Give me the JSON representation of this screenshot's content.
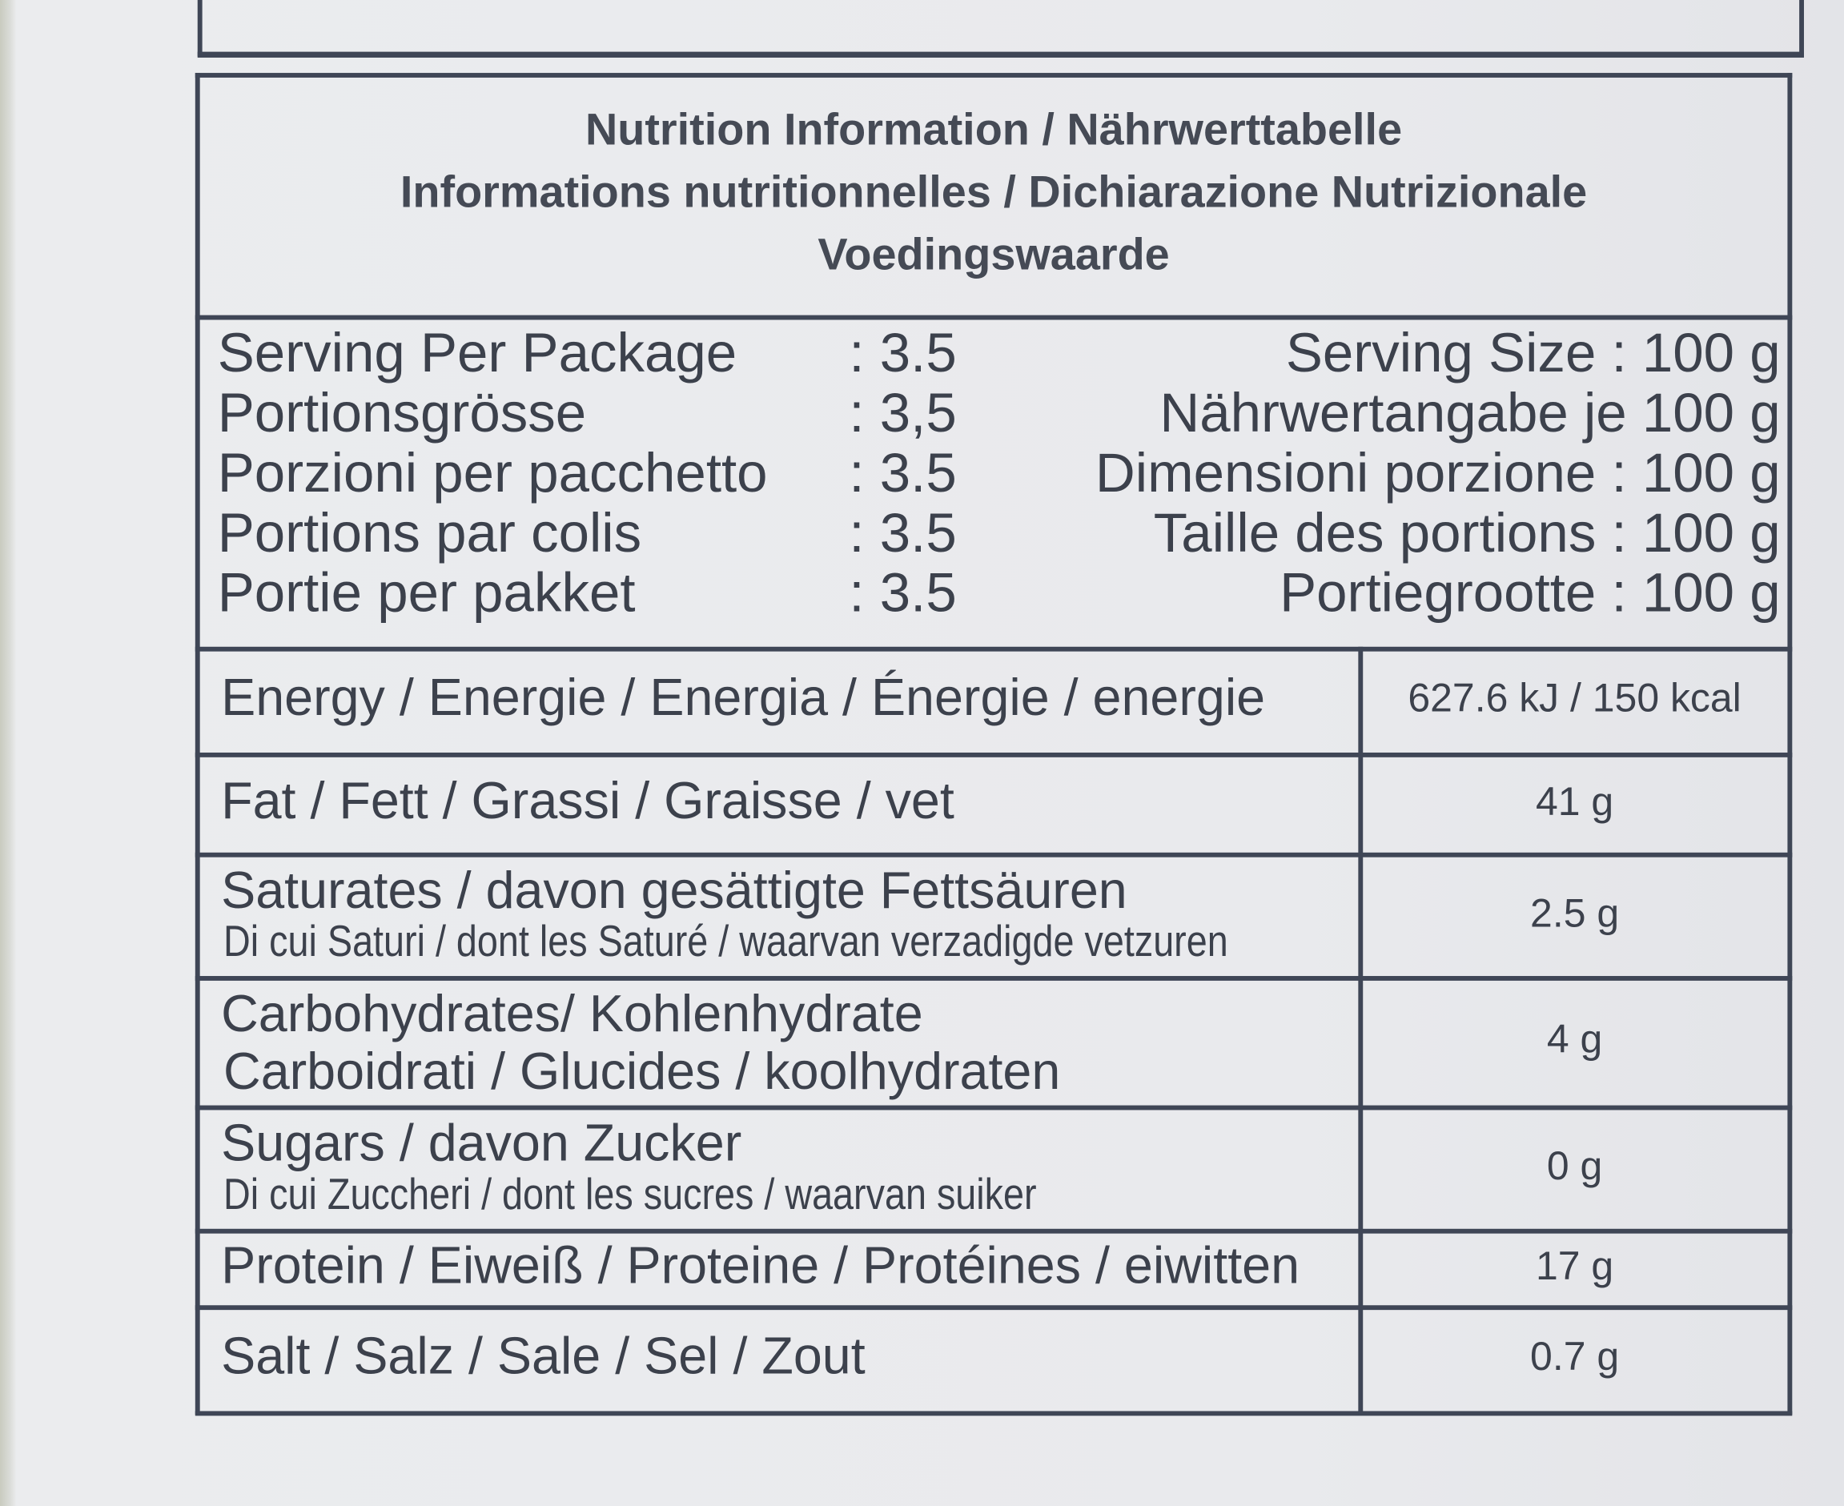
{
  "header": {
    "title_lines": [
      "Nutrition Information / Nährwerttabelle",
      "Informations nutritionnelles / Dichiarazione Nutrizionale",
      "Voedingswaarde"
    ]
  },
  "servings": [
    {
      "label": "Serving Per Package",
      "per_package": ": 3.5",
      "size": "Serving Size : 100 g"
    },
    {
      "label": "Portionsgrösse",
      "per_package": ": 3,5",
      "size": "Nährwertangabe je 100 g"
    },
    {
      "label": "Porzioni per pacchetto",
      "per_package": ": 3.5",
      "size": "Dimensioni porzione : 100 g"
    },
    {
      "label": "Portions par colis",
      "per_package": ": 3.5",
      "size": "Taille des portions : 100 g"
    },
    {
      "label": "Portie per pakket",
      "per_package": ": 3.5",
      "size": "Portiegrootte : 100 g"
    }
  ],
  "nutrients": [
    {
      "lines": [
        "Energy / Energie / Energia / Énergie / energie"
      ],
      "value": "627.6 kJ / 150 kcal"
    },
    {
      "lines": [
        "Fat / Fett / Grassi / Graisse / vet"
      ],
      "value": "41 g"
    },
    {
      "lines": [
        "Saturates / davon gesättigte Fettsäuren",
        "Di cui Saturi / dont les Saturé / waarvan verzadigde vetzuren"
      ],
      "value": "2.5 g"
    },
    {
      "lines": [
        "Carbohydrates/ Kohlenhydrate",
        "Carboidrati / Glucides / koolhydraten"
      ],
      "value": "4 g"
    },
    {
      "lines": [
        "Sugars / davon Zucker",
        "Di cui Zuccheri / dont les sucres / waarvan suiker"
      ],
      "value": "0 g"
    },
    {
      "lines": [
        "Protein / Eiweiß / Proteine / Protéines / eiwitten"
      ],
      "value": "17 g"
    },
    {
      "lines": [
        "Salt / Salz / Sale / Sel / Zout"
      ],
      "value": "0.7 g"
    }
  ]
}
